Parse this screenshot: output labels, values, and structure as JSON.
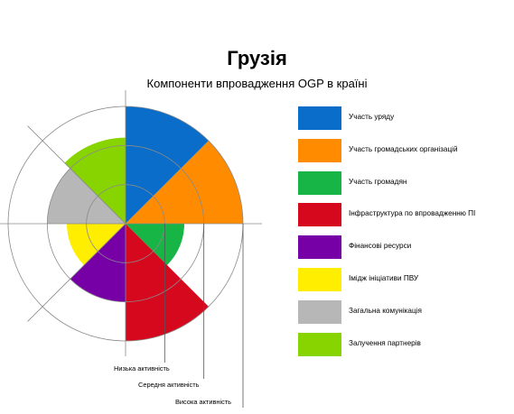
{
  "title": "Грузія",
  "subtitle": "Компоненти впровадження OGP в країні",
  "chart_data": {
    "type": "polar-area",
    "levels": [
      "Низька активність",
      "Середня активність",
      "Висока активність"
    ],
    "level_scale": [
      1,
      2,
      3
    ],
    "series": [
      {
        "name": "Участь уряду",
        "value": 3,
        "color": "#0a6dc9"
      },
      {
        "name": "Участь громадських організацій",
        "value": 3,
        "color": "#ff8c00"
      },
      {
        "name": "Участь громадян",
        "value": 1.5,
        "color": "#16b545"
      },
      {
        "name": "Інфраструктура по впровадженню ПІ",
        "value": 3,
        "color": "#d6081e"
      },
      {
        "name": "Фінансові ресурси",
        "value": 2,
        "color": "#7600a6"
      },
      {
        "name": "Імідж ініціативи ПВУ",
        "value": 1.5,
        "color": "#ffee00"
      },
      {
        "name": "Загальна комунікація",
        "value": 2,
        "color": "#b7b7b7"
      },
      {
        "name": "Залучення партнерів",
        "value": 2.2,
        "color": "#88d400"
      }
    ]
  }
}
